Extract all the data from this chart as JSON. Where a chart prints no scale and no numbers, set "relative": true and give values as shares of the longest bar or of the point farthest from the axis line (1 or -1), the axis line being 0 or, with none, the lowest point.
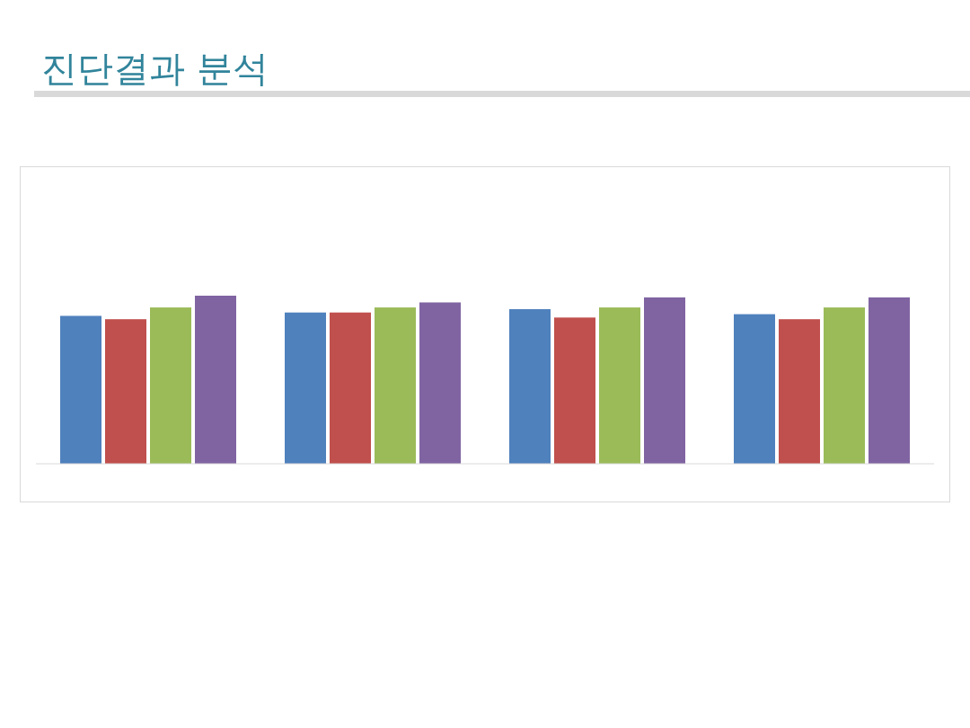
{
  "chart_data": {
    "type": "bar",
    "title": "진단결과 분석",
    "relative": true,
    "categories": [
      null,
      null,
      null,
      null
    ],
    "series": [
      {
        "color": "#4f81bd",
        "values": [
          0.88,
          0.9,
          0.92,
          0.89
        ]
      },
      {
        "color": "#c0504d",
        "values": [
          0.86,
          0.9,
          0.87,
          0.86
        ]
      },
      {
        "color": "#9bbb59",
        "values": [
          0.93,
          0.93,
          0.93,
          0.93
        ]
      },
      {
        "color": "#8064a2",
        "values": [
          1,
          0.96,
          0.99,
          0.99
        ]
      }
    ]
  }
}
